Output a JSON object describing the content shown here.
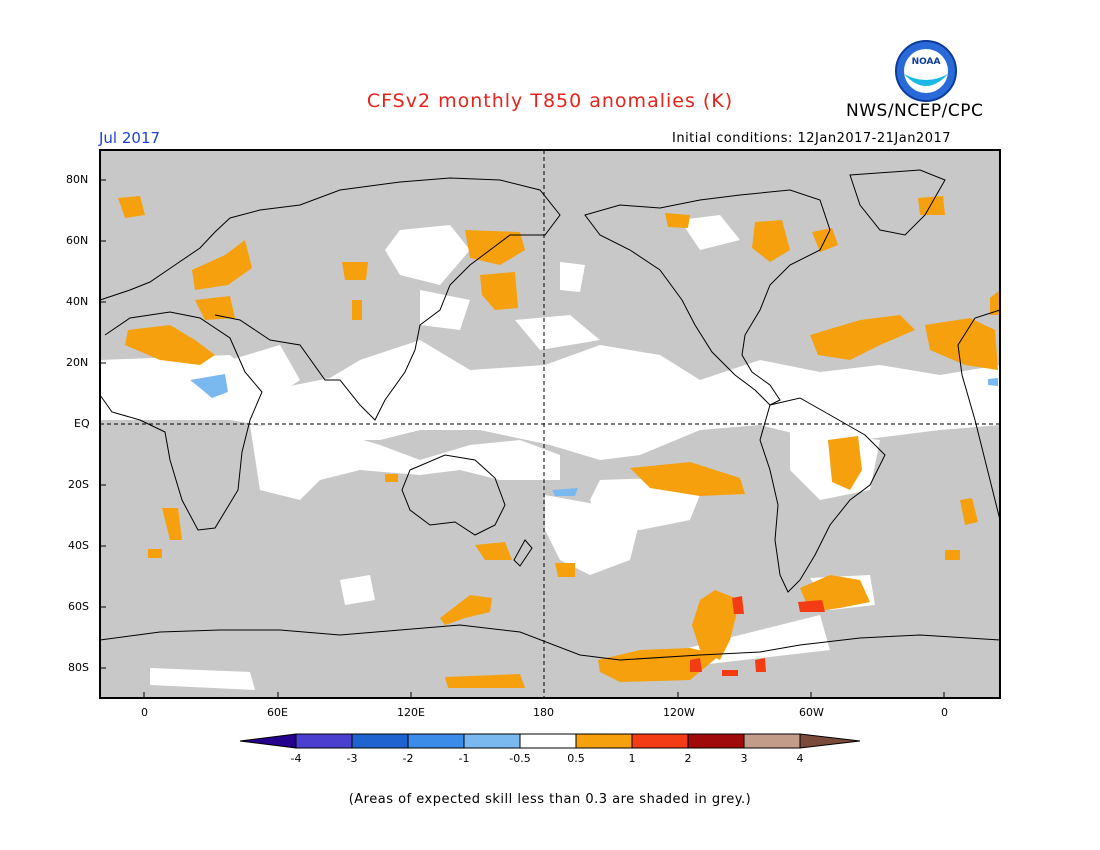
{
  "header": {
    "title": "CFSv2 monthly T850 anomalies (K)",
    "org": "NWS/NCEP/CPC",
    "logo_text": "NOAA",
    "month": "Jul 2017",
    "initial_conditions": "Initial conditions: 12Jan2017-21Jan2017"
  },
  "map": {
    "lat_labels": [
      "80N",
      "60N",
      "40N",
      "20N",
      "EQ",
      "20S",
      "40S",
      "60S",
      "80S"
    ],
    "lon_labels": [
      "0",
      "60E",
      "120E",
      "180",
      "120W",
      "60W",
      "0"
    ],
    "background_skill_color": "#c8c8c8",
    "coast_color": "#000000"
  },
  "colorbar": {
    "labels": [
      "-4",
      "-3",
      "-2",
      "-1",
      "-0.5",
      "0.5",
      "1",
      "2",
      "3",
      "4"
    ],
    "colors": [
      "#24008c",
      "#4b3fcf",
      "#1e63d0",
      "#3a8ce8",
      "#7ab8f0",
      "#ffffff",
      "#f5a00c",
      "#f43c14",
      "#a00a0a",
      "#c39b89",
      "#7a4a3a"
    ]
  },
  "footnote": "(Areas of expected skill less than 0.3 are shaded in grey.)"
}
